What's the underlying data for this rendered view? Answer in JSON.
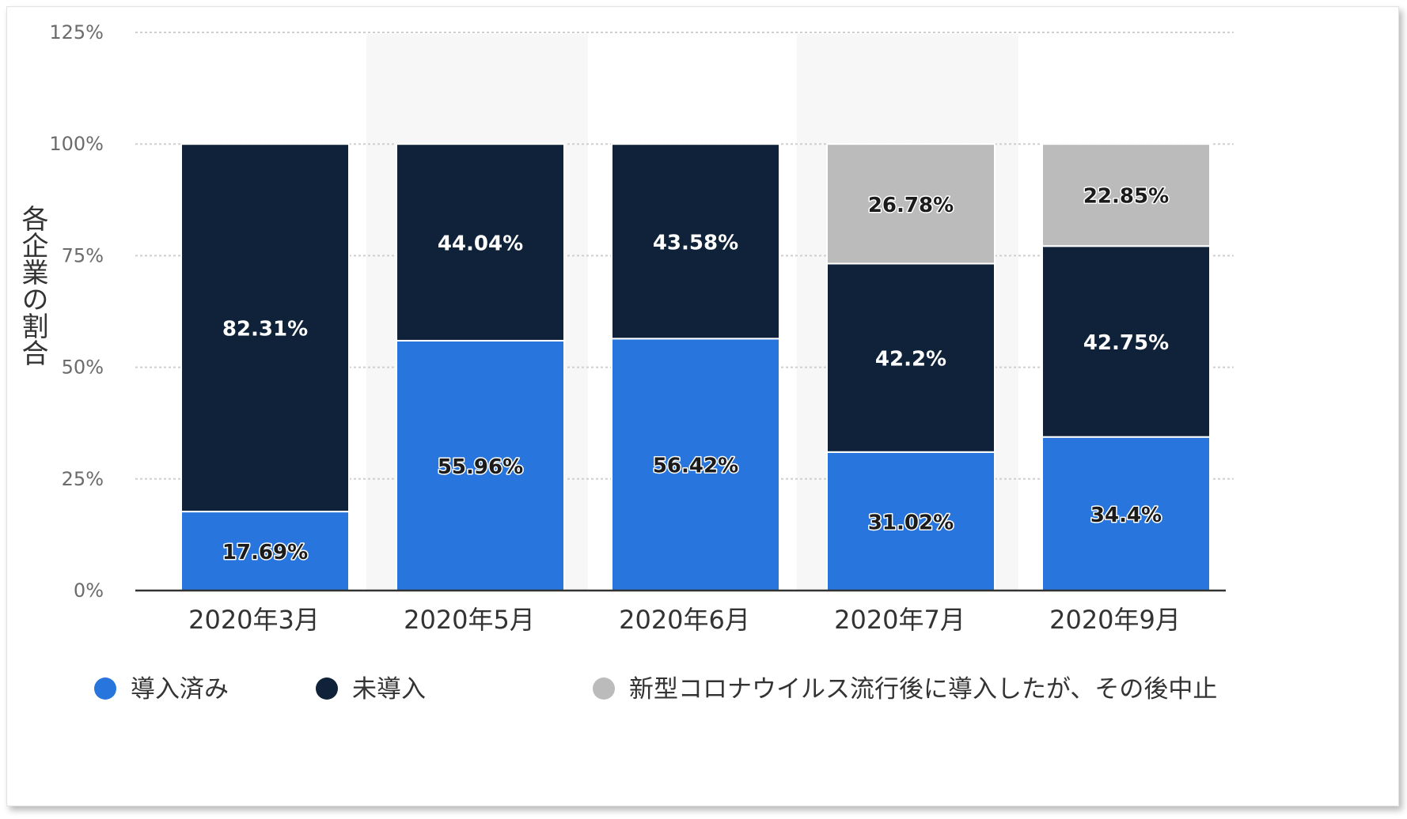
{
  "chart_data": {
    "type": "bar",
    "stacked": true,
    "title": "",
    "xlabel": "",
    "ylabel": "各企業の割合",
    "ylim": [
      0,
      125
    ],
    "yticks": [
      "0%",
      "25%",
      "50%",
      "75%",
      "100%",
      "125%"
    ],
    "ytick_values": [
      0,
      25,
      50,
      75,
      100,
      125
    ],
    "grid": true,
    "legend_position": "bottom",
    "categories": [
      "2020年3月",
      "2020年5月",
      "2020年6月",
      "2020年7月",
      "2020年9月"
    ],
    "series": [
      {
        "name": "導入済み",
        "color": "#2876dd",
        "values": [
          17.69,
          55.96,
          56.42,
          31.02,
          34.4
        ],
        "labels": [
          "17.69%",
          "55.96%",
          "56.42%",
          "31.02%",
          "34.4%"
        ]
      },
      {
        "name": "未導入",
        "color": "#0f2239",
        "values": [
          82.31,
          44.04,
          43.58,
          42.2,
          42.75
        ],
        "labels": [
          "82.31%",
          "44.04%",
          "43.58%",
          "42.2%",
          "42.75%"
        ]
      },
      {
        "name": "新型コロナウイルス流行後に導入したが、その後中止",
        "color": "#bbbbbb",
        "values": [
          0,
          0,
          0,
          26.78,
          22.85
        ],
        "labels": [
          "",
          "",
          "",
          "26.78%",
          "22.85%"
        ]
      }
    ]
  }
}
